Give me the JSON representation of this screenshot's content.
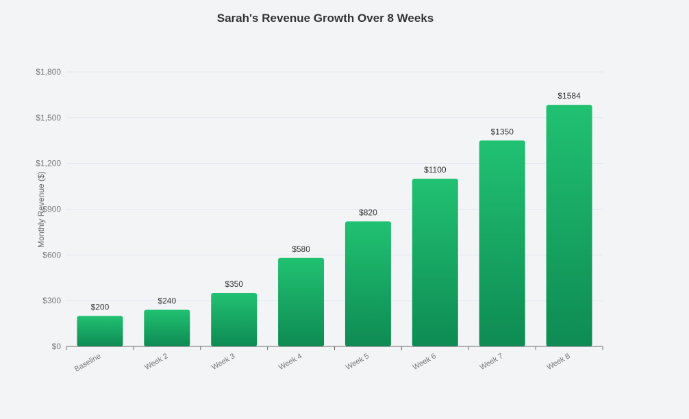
{
  "chart_data": {
    "type": "bar",
    "title": "Sarah's Revenue Growth Over 8 Weeks",
    "xlabel": "",
    "ylabel": "Monthly Revenue ($)",
    "categories": [
      "Baseline",
      "Week 2",
      "Week 3",
      "Week 4",
      "Week 5",
      "Week 6",
      "Week 7",
      "Week 8"
    ],
    "values": [
      200,
      240,
      350,
      580,
      820,
      1100,
      1350,
      1584
    ],
    "data_labels": [
      "$200",
      "$240",
      "$350",
      "$580",
      "$820",
      "$1100",
      "$1350",
      "$1584"
    ],
    "ylim": [
      0,
      1800
    ],
    "yticks": [
      0,
      300,
      600,
      900,
      1200,
      1500,
      1800
    ],
    "ytick_labels": [
      "$0",
      "$300",
      "$600",
      "$900",
      "$1,200",
      "$1,500",
      "$1,800"
    ],
    "grid": true,
    "colors": {
      "bar_top": "#21c172",
      "bar_bottom": "#0e8b53",
      "grid": "#e1e5f0",
      "axis": "#6b6b6b",
      "tick_text": "#777777"
    }
  }
}
